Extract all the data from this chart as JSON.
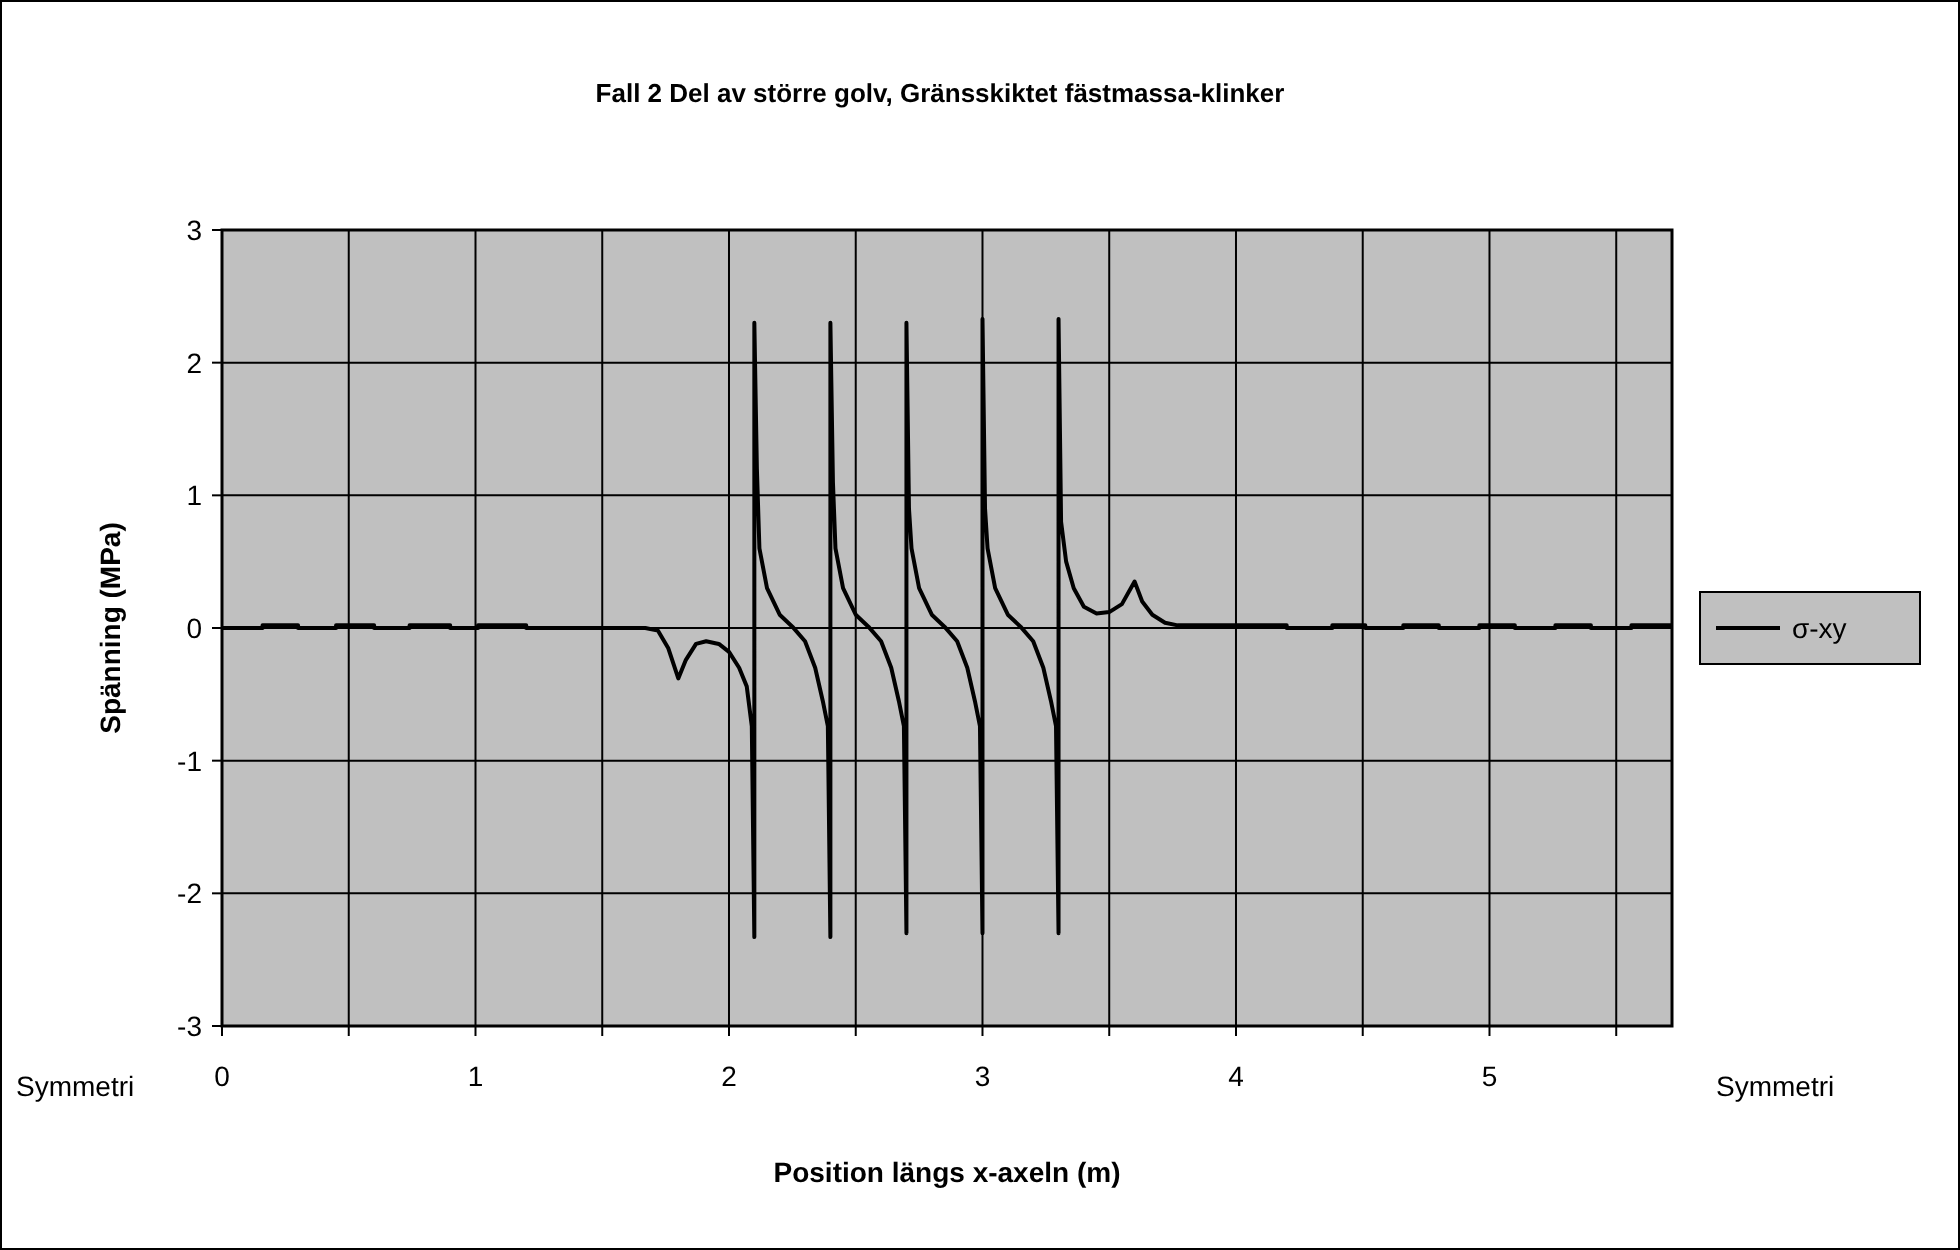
{
  "chart_data": {
    "type": "line",
    "title": "Fall 2 Del av större golv, Gränsskiktet fästmassa-klinker",
    "xlabel": "Position längs x-axeln (m)",
    "ylabel": "Spänning (MPa)",
    "annotations": [
      "Symmetri",
      "Symmetri"
    ],
    "xlim": [
      0,
      5.72
    ],
    "xticks": [
      0,
      {
        "value": 0.5,
        "label": null
      },
      1,
      {
        "value": 1.5,
        "label": null
      },
      2,
      {
        "value": 2.5,
        "label": null
      },
      3,
      {
        "value": 3.5,
        "label": null
      },
      4,
      {
        "value": 4.5,
        "label": null
      },
      5,
      {
        "value": 5.5,
        "label": null
      }
    ],
    "ylim": [
      -3,
      3
    ],
    "yticks": [
      -3,
      -2,
      -1,
      0,
      1,
      2,
      3
    ],
    "grid": true,
    "legend": "right",
    "marker": "none",
    "line_style": "solid",
    "series": [
      {
        "name": "σ-xy",
        "color": "#000000",
        "x": [
          0,
          0.16,
          0.16,
          0.3,
          0.3,
          0.45,
          0.45,
          0.6,
          0.6,
          0.74,
          0.74,
          0.9,
          0.9,
          1.01,
          1.01,
          1.2,
          1.2,
          1.67,
          1.72,
          1.76,
          1.8,
          1.83,
          1.87,
          1.91,
          1.96,
          2.0,
          2.04,
          2.07,
          2.09,
          2.1,
          2.1,
          2.11,
          2.12,
          2.15,
          2.2,
          2.25,
          2.3,
          2.34,
          2.37,
          2.39,
          2.4,
          2.4,
          2.41,
          2.42,
          2.45,
          2.5,
          2.55,
          2.6,
          2.64,
          2.67,
          2.69,
          2.7,
          2.7,
          2.71,
          2.72,
          2.75,
          2.8,
          2.85,
          2.9,
          2.94,
          2.97,
          2.99,
          3.0,
          3.0,
          3.01,
          3.02,
          3.05,
          3.1,
          3.15,
          3.2,
          3.24,
          3.27,
          3.29,
          3.3,
          3.3,
          3.31,
          3.33,
          3.36,
          3.4,
          3.45,
          3.5,
          3.55,
          3.6,
          3.63,
          3.67,
          3.72,
          3.77,
          4.2,
          4.2,
          4.38,
          4.38,
          4.51,
          4.51,
          4.66,
          4.66,
          4.8,
          4.8,
          4.96,
          4.96,
          5.1,
          5.1,
          5.26,
          5.26,
          5.4,
          5.4,
          5.56,
          5.56,
          5.72
        ],
        "values": [
          0,
          0,
          0.02,
          0.02,
          0,
          0,
          0.02,
          0.02,
          0,
          0,
          0.02,
          0.02,
          0,
          0,
          0.02,
          0.02,
          0,
          0,
          -0.02,
          -0.15,
          -0.38,
          -0.24,
          -0.12,
          -0.1,
          -0.12,
          -0.18,
          -0.3,
          -0.44,
          -0.74,
          -2.33,
          2.3,
          1.2,
          0.6,
          0.3,
          0.1,
          0.01,
          -0.1,
          -0.3,
          -0.55,
          -0.74,
          -2.33,
          2.3,
          1.1,
          0.6,
          0.3,
          0.1,
          0.01,
          -0.1,
          -0.3,
          -0.55,
          -0.74,
          -2.3,
          2.3,
          0.9,
          0.6,
          0.3,
          0.1,
          0.01,
          -0.1,
          -0.3,
          -0.55,
          -0.74,
          -2.3,
          2.33,
          0.9,
          0.6,
          0.3,
          0.1,
          0.01,
          -0.1,
          -0.3,
          -0.55,
          -0.74,
          -2.3,
          2.33,
          0.8,
          0.5,
          0.3,
          0.16,
          0.11,
          0.12,
          0.18,
          0.35,
          0.2,
          0.1,
          0.04,
          0.02,
          0.02,
          0,
          0,
          0.02,
          0.02,
          0,
          0,
          0.02,
          0.02,
          0,
          0,
          0.02,
          0.02,
          0,
          0,
          0.02,
          0.02,
          0,
          0,
          0.02,
          0.02
        ]
      }
    ]
  }
}
